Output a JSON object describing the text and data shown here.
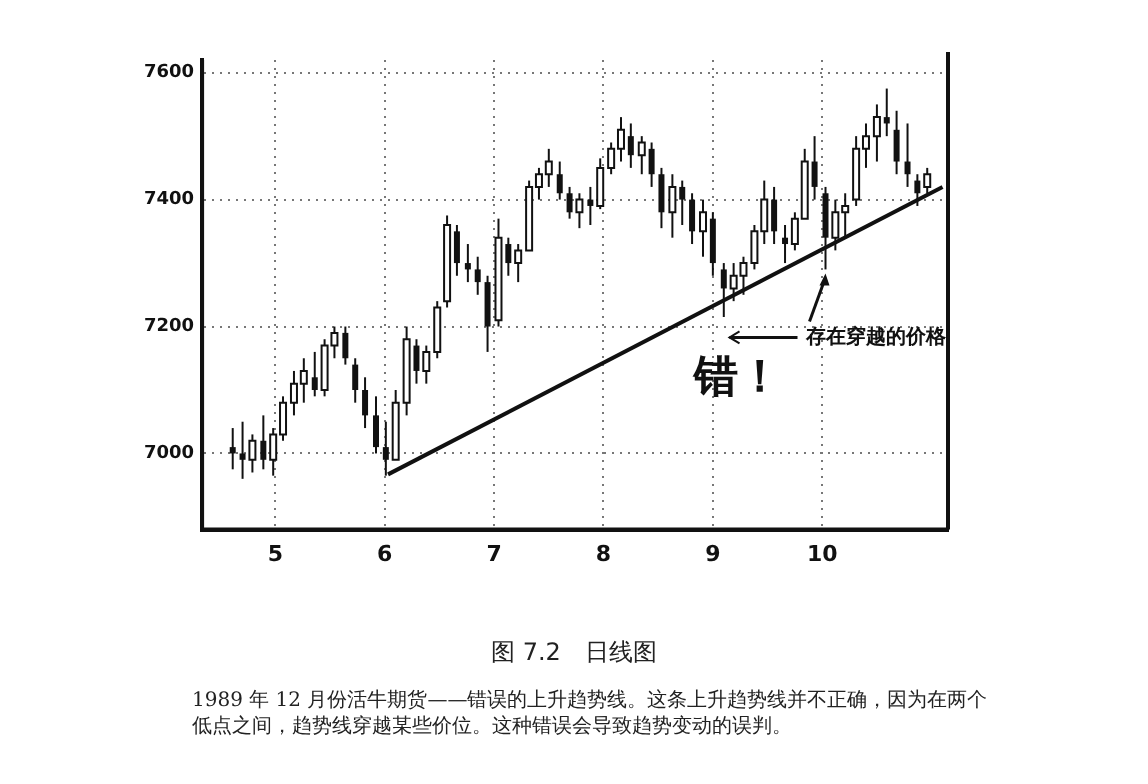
{
  "chart_data": {
    "type": "candlestick",
    "title": "图 7.2　日线图",
    "x": [
      4.61,
      4.7,
      4.79,
      4.89,
      4.98,
      5.07,
      5.17,
      5.26,
      5.36,
      5.45,
      5.54,
      5.64,
      5.73,
      5.82,
      5.92,
      6.01,
      6.1,
      6.2,
      6.29,
      6.38,
      6.48,
      6.57,
      6.66,
      6.76,
      6.85,
      6.94,
      7.04,
      7.13,
      7.22,
      7.32,
      7.41,
      7.5,
      7.6,
      7.69,
      7.78,
      7.88,
      7.97,
      8.07,
      8.16,
      8.25,
      8.35,
      8.44,
      8.53,
      8.63,
      8.72,
      8.81,
      8.91,
      9.0,
      9.1,
      9.19,
      9.28,
      9.38,
      9.47,
      9.56,
      9.66,
      9.75,
      9.84,
      9.93,
      10.03,
      10.12,
      10.21,
      10.31,
      10.4,
      10.5,
      10.59,
      10.68,
      10.78,
      10.87,
      10.96
    ],
    "ohlc": [
      [
        7010,
        7040,
        6975,
        7000
      ],
      [
        7000,
        7050,
        6960,
        6990
      ],
      [
        6990,
        7030,
        6970,
        7020
      ],
      [
        7020,
        7060,
        6975,
        6990
      ],
      [
        6990,
        7040,
        6965,
        7030
      ],
      [
        7030,
        7090,
        7020,
        7080
      ],
      [
        7080,
        7130,
        7060,
        7110
      ],
      [
        7110,
        7150,
        7080,
        7130
      ],
      [
        7120,
        7160,
        7090,
        7100
      ],
      [
        7100,
        7180,
        7090,
        7170
      ],
      [
        7170,
        7200,
        7150,
        7190
      ],
      [
        7190,
        7200,
        7140,
        7150
      ],
      [
        7140,
        7150,
        7080,
        7100
      ],
      [
        7100,
        7120,
        7040,
        7060
      ],
      [
        7060,
        7090,
        7000,
        7010
      ],
      [
        7010,
        7050,
        6965,
        6990
      ],
      [
        6990,
        7100,
        6990,
        7080
      ],
      [
        7080,
        7200,
        7060,
        7180
      ],
      [
        7170,
        7180,
        7110,
        7130
      ],
      [
        7130,
        7170,
        7110,
        7160
      ],
      [
        7160,
        7240,
        7150,
        7230
      ],
      [
        7240,
        7375,
        7230,
        7360
      ],
      [
        7350,
        7360,
        7280,
        7300
      ],
      [
        7300,
        7330,
        7270,
        7290
      ],
      [
        7290,
        7310,
        7250,
        7270
      ],
      [
        7270,
        7280,
        7160,
        7200
      ],
      [
        7210,
        7370,
        7200,
        7340
      ],
      [
        7330,
        7340,
        7280,
        7300
      ],
      [
        7300,
        7330,
        7270,
        7320
      ],
      [
        7320,
        7430,
        7320,
        7420
      ],
      [
        7420,
        7450,
        7400,
        7440
      ],
      [
        7440,
        7480,
        7420,
        7460
      ],
      [
        7440,
        7460,
        7400,
        7410
      ],
      [
        7410,
        7420,
        7370,
        7380
      ],
      [
        7380,
        7410,
        7355,
        7400
      ],
      [
        7400,
        7420,
        7360,
        7390
      ],
      [
        7390,
        7465,
        7385,
        7450
      ],
      [
        7450,
        7490,
        7440,
        7480
      ],
      [
        7480,
        7530,
        7460,
        7510
      ],
      [
        7500,
        7520,
        7450,
        7470
      ],
      [
        7470,
        7500,
        7440,
        7490
      ],
      [
        7480,
        7490,
        7420,
        7440
      ],
      [
        7440,
        7450,
        7355,
        7380
      ],
      [
        7380,
        7440,
        7340,
        7420
      ],
      [
        7420,
        7430,
        7360,
        7400
      ],
      [
        7400,
        7410,
        7330,
        7350
      ],
      [
        7350,
        7400,
        7310,
        7380
      ],
      [
        7370,
        7380,
        7280,
        7300
      ],
      [
        7290,
        7300,
        7215,
        7260
      ],
      [
        7260,
        7300,
        7240,
        7280
      ],
      [
        7280,
        7310,
        7250,
        7300
      ],
      [
        7300,
        7360,
        7290,
        7350
      ],
      [
        7350,
        7430,
        7330,
        7400
      ],
      [
        7400,
        7420,
        7330,
        7350
      ],
      [
        7340,
        7360,
        7300,
        7330
      ],
      [
        7330,
        7380,
        7320,
        7370
      ],
      [
        7370,
        7480,
        7370,
        7460
      ],
      [
        7460,
        7500,
        7400,
        7420
      ],
      [
        7410,
        7420,
        7290,
        7340
      ],
      [
        7340,
        7400,
        7320,
        7380
      ],
      [
        7380,
        7410,
        7340,
        7390
      ],
      [
        7400,
        7500,
        7390,
        7480
      ],
      [
        7480,
        7520,
        7450,
        7500
      ],
      [
        7500,
        7550,
        7460,
        7530
      ],
      [
        7530,
        7575,
        7500,
        7520
      ],
      [
        7510,
        7540,
        7440,
        7460
      ],
      [
        7460,
        7520,
        7420,
        7440
      ],
      [
        7430,
        7440,
        7390,
        7410
      ],
      [
        7420,
        7450,
        7410,
        7440
      ]
    ],
    "series": [
      {
        "type": "line",
        "x": [
          6.03,
          11.1
        ],
        "values": [
          6967,
          7420
        ],
        "color": "#111111"
      }
    ],
    "xlim": [
      4.33,
      11.15
    ],
    "xticks": [
      5,
      6,
      7,
      8,
      9,
      10
    ],
    "ylim": [
      6880,
      7620
    ],
    "yticks": [
      7000,
      7200,
      7400,
      7600
    ],
    "grid": true,
    "legend": false,
    "annotations": [
      {
        "text": "存在穿越的价格",
        "x": 10.03,
        "y": 7290
      },
      "错！",
      "1989 年 12 月份活牛期货——错误的上升趋势线。这条上升趋势线并不正确，因为在两个低点之间，趋势线穿越某些价位。这种错误会导致趋势变动的误判。"
    ]
  }
}
